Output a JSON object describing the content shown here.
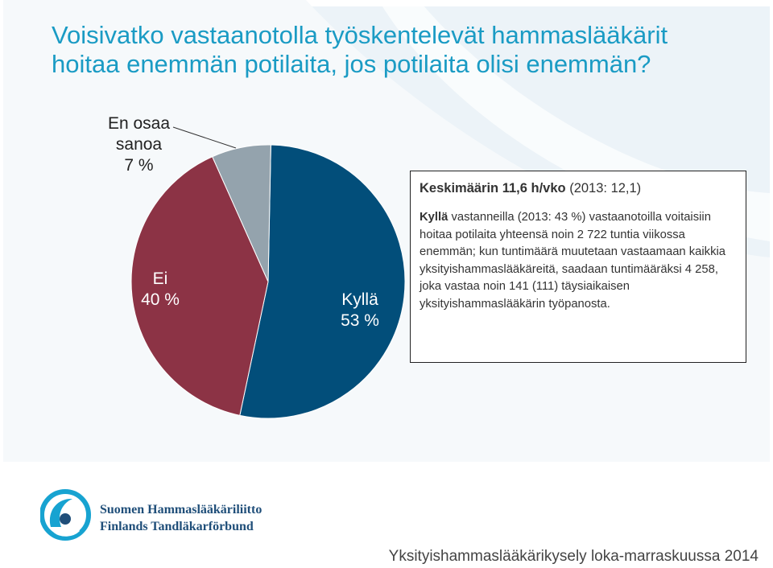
{
  "title_lines": [
    "Voisivatko vastaanotolla työskentelevät hammaslääkärit",
    "hoitaa enemmän potilaita, jos potilaita olisi enemmän?"
  ],
  "chart_data": {
    "type": "pie",
    "slices": [
      {
        "label": "Kyllä",
        "value": 53,
        "value_label": "53 %",
        "color": "#024e7a",
        "label_color": "#ffffff"
      },
      {
        "label": "Ei",
        "value": 40,
        "value_label": "40 %",
        "color": "#8c3345",
        "label_color": "#ffffff"
      },
      {
        "label": "En osaa sanoa",
        "label_lines": [
          "En osaa",
          "sanoa"
        ],
        "value": 7,
        "value_label": "7 %",
        "color": "#94a3ad",
        "label_color": "#222222"
      }
    ]
  },
  "infobox": {
    "headline_bold": "Keskimäärin 11,6 h/vko",
    "headline_rest": " (2013: 12,1)",
    "body_bold": "Kyllä",
    "body_rest": " vastanneilla (2013: 43 %) vastaanotoilla voitaisiin hoitaa potilaita yhteensä noin 2 722 tuntia viikossa enemmän; kun tuntimäärä muutetaan vastaamaan kaikkia yksityishammaslääkäreitä, saadaan tuntimääräksi 4 258, joka vastaa noin 141 (111) täysiaikaisen yksityishammaslääkärin työpanosta."
  },
  "organization": {
    "name_fi": "Suomen Hammaslääkäriliitto",
    "name_sv": "Finlands Tandläkarförbund"
  },
  "footer": "Yksityishammaslääkärikysely loka-marraskuussa 2014",
  "colors": {
    "title": "#1a9bc4",
    "band": "#e6eff5"
  }
}
